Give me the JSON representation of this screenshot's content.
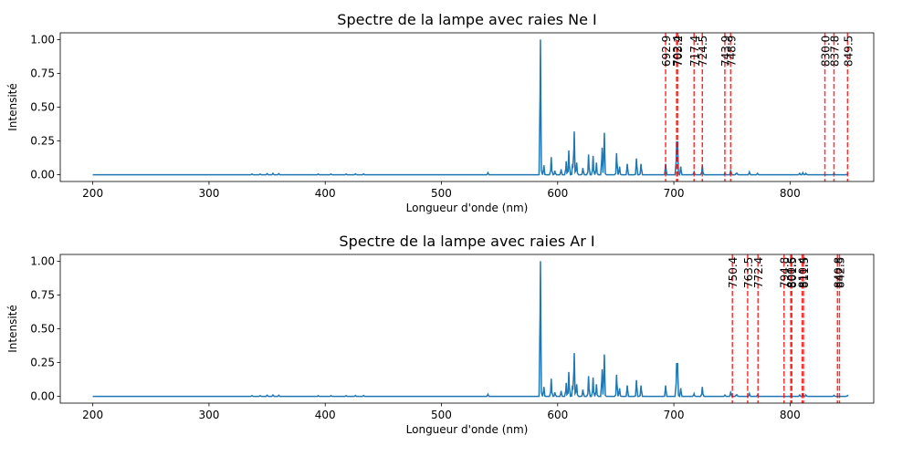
{
  "chart_data": [
    {
      "type": "line",
      "title": "Spectre de la lampe avec raies Ne I",
      "xlabel": "Longueur d'onde (nm)",
      "ylabel": "Intensité",
      "xlim": [
        172,
        872
      ],
      "ylim": [
        -0.05,
        1.05
      ],
      "xticks": [
        200,
        300,
        400,
        500,
        600,
        700,
        800
      ],
      "yticks": [
        "0.00",
        "0.25",
        "0.50",
        "0.75",
        "1.00"
      ],
      "grid": false,
      "spectrum_color": "#1f77b4",
      "line_color": "#ff0000",
      "reference_lines": [
        "692.9",
        "702.4",
        "703.2",
        "717.4",
        "724.5",
        "743.9",
        "748.9",
        "830.0",
        "837.8",
        "849.5"
      ]
    },
    {
      "type": "line",
      "title": "Spectre de la lampe avec raies Ar I",
      "xlabel": "Longueur d'onde (nm)",
      "ylabel": "Intensité",
      "xlim": [
        172,
        872
      ],
      "ylim": [
        -0.05,
        1.05
      ],
      "xticks": [
        200,
        300,
        400,
        500,
        600,
        700,
        800
      ],
      "yticks": [
        "0.00",
        "0.25",
        "0.50",
        "0.75",
        "1.00"
      ],
      "grid": false,
      "spectrum_color": "#1f77b4",
      "line_color": "#ff0000",
      "reference_lines": [
        "750.4",
        "763.5",
        "772.4",
        "794.8",
        "800.6",
        "801.5",
        "810.4",
        "811.5",
        "840.8",
        "842.5"
      ]
    }
  ],
  "spectrum": {
    "baseline": 0.0,
    "peaks": [
      [
        337,
        0.005
      ],
      [
        344,
        0.005
      ],
      [
        350,
        0.008
      ],
      [
        355,
        0.01
      ],
      [
        360,
        0.008
      ],
      [
        394,
        0.005
      ],
      [
        405,
        0.005
      ],
      [
        418,
        0.005
      ],
      [
        426,
        0.006
      ],
      [
        433,
        0.006
      ],
      [
        540,
        0.015
      ],
      [
        585.2,
        1.0
      ],
      [
        588.2,
        0.07
      ],
      [
        594.5,
        0.13
      ],
      [
        597.6,
        0.03
      ],
      [
        603.0,
        0.04
      ],
      [
        607.4,
        0.1
      ],
      [
        609.6,
        0.18
      ],
      [
        612.8,
        0.08
      ],
      [
        614.3,
        0.32
      ],
      [
        616.4,
        0.09
      ],
      [
        621.7,
        0.05
      ],
      [
        626.6,
        0.15
      ],
      [
        630.5,
        0.14
      ],
      [
        633.4,
        0.09
      ],
      [
        638.3,
        0.2
      ],
      [
        640.2,
        0.31
      ],
      [
        650.7,
        0.16
      ],
      [
        653.3,
        0.06
      ],
      [
        659.9,
        0.08
      ],
      [
        667.8,
        0.12
      ],
      [
        671.7,
        0.08
      ],
      [
        692.9,
        0.08
      ],
      [
        702.4,
        0.24
      ],
      [
        703.2,
        0.24
      ],
      [
        705.9,
        0.06
      ],
      [
        717.4,
        0.02
      ],
      [
        724.5,
        0.07
      ],
      [
        743.9,
        0.01
      ],
      [
        748.9,
        0.03
      ],
      [
        753.6,
        0.01
      ],
      [
        754.4,
        0.01
      ],
      [
        765.0,
        0.02
      ],
      [
        772.0,
        0.01
      ],
      [
        808.3,
        0.01
      ],
      [
        811.0,
        0.015
      ],
      [
        813.6,
        0.01
      ],
      [
        837.8,
        0.008
      ],
      [
        849.5,
        0.006
      ]
    ]
  }
}
